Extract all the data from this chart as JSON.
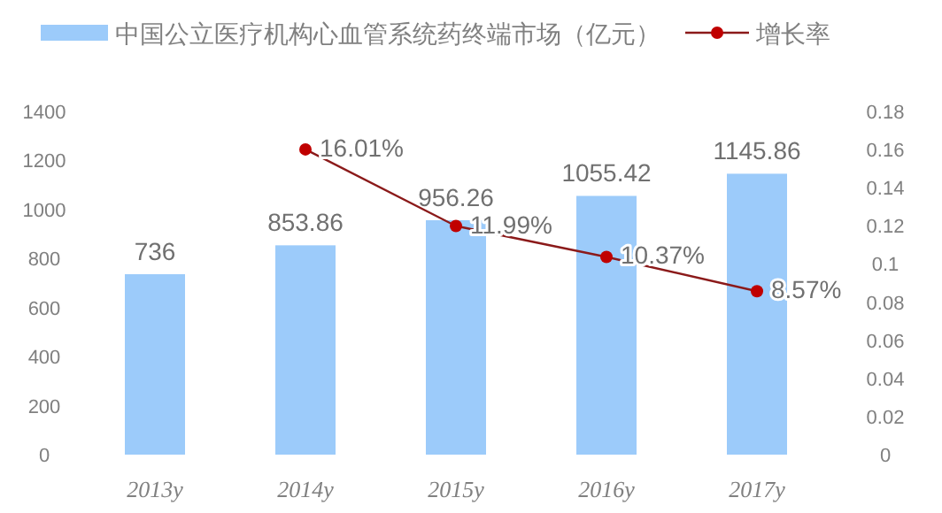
{
  "chart_data": {
    "type": "bar",
    "categories": [
      "2013y",
      "2014y",
      "2015y",
      "2016y",
      "2017y"
    ],
    "series": [
      {
        "name": "中国公立医疗机构心血管系统药终端市场（亿元）",
        "color": "#9ccbfa",
        "values": [
          736,
          853.86,
          956.26,
          1055.42,
          1145.86
        ],
        "value_labels": [
          "736",
          "853.86",
          "956.26",
          "1055.42",
          "1145.86"
        ]
      },
      {
        "name": "增长率",
        "type": "line",
        "axis": "y2",
        "color": "#c00000",
        "marker": "circle",
        "values": [
          null,
          0.1601,
          0.1199,
          0.1037,
          0.0857
        ],
        "value_labels": [
          null,
          "16.01%",
          "11.99%",
          "10.37%",
          "8.57%"
        ]
      }
    ],
    "ylim": [
      0,
      1400
    ],
    "yticks": [
      0,
      200,
      400,
      600,
      800,
      1000,
      1200,
      1400
    ],
    "y2lim": [
      0,
      0.18
    ],
    "y2ticks": [
      0,
      0.02,
      0.04,
      0.06,
      0.08,
      0.1,
      0.12,
      0.14,
      0.16,
      0.18
    ],
    "grid": false,
    "legend": "top"
  }
}
